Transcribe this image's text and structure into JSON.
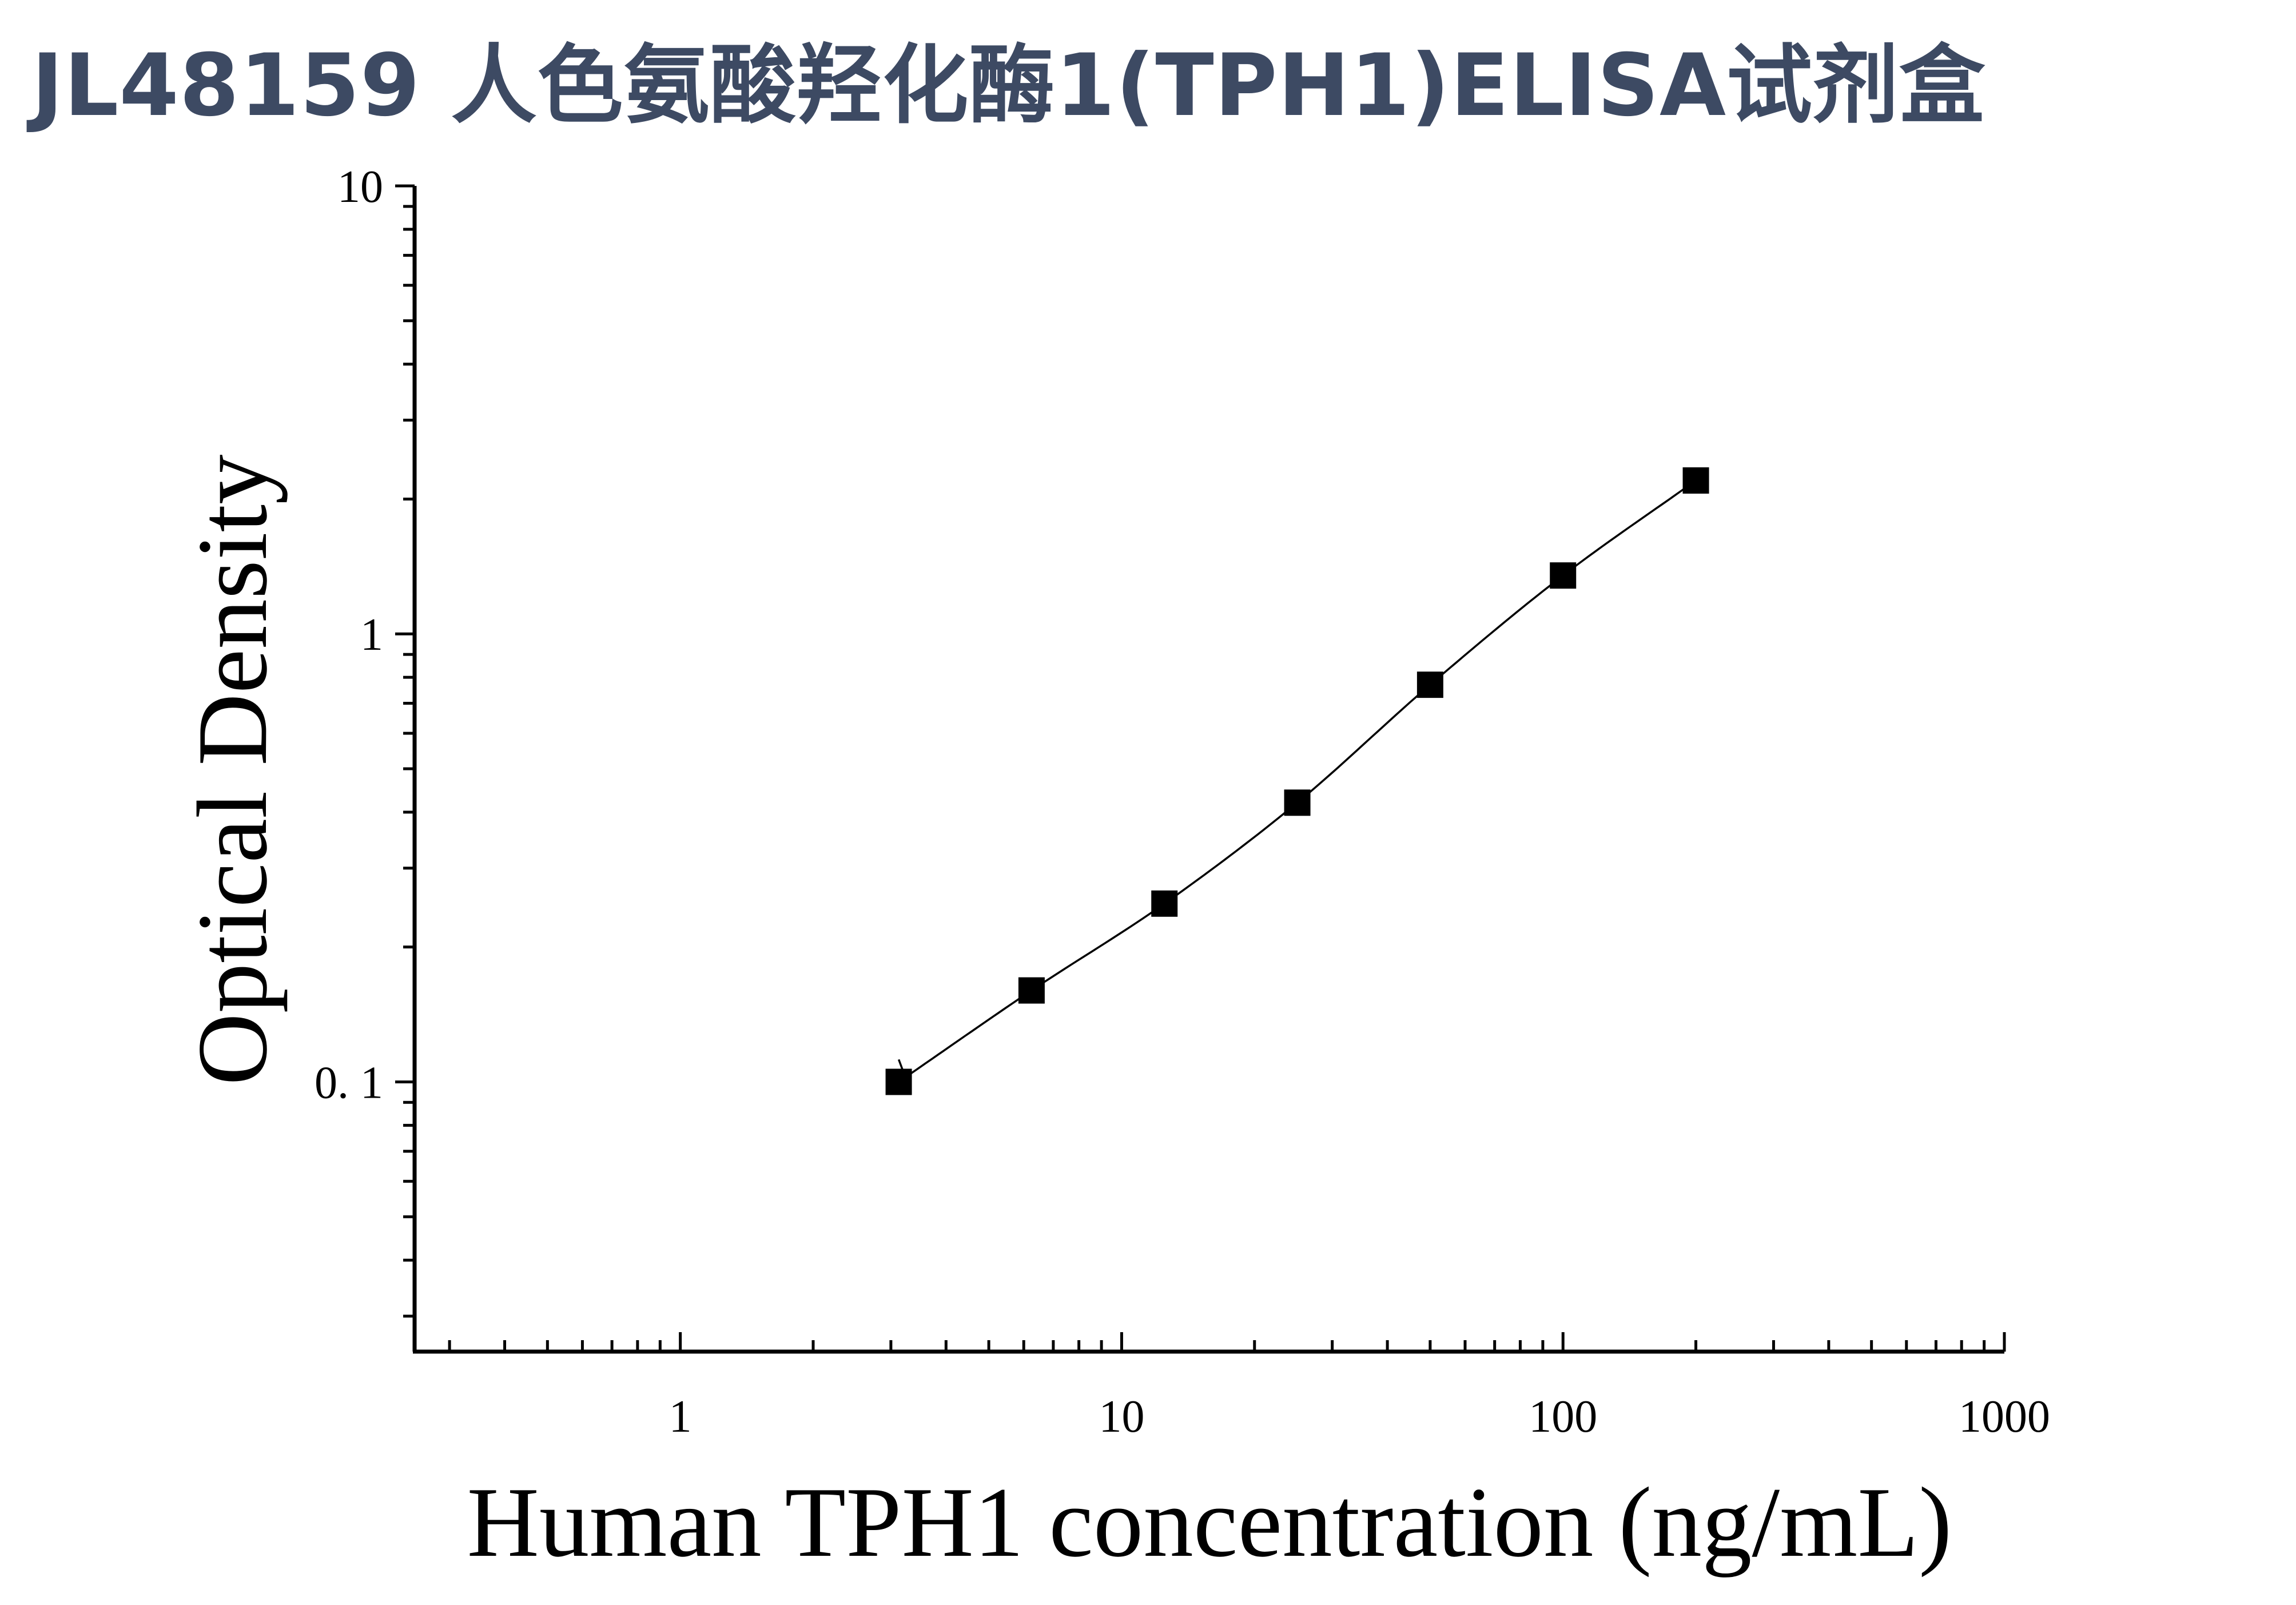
{
  "chart_data": {
    "type": "scatter",
    "title": "JL48159 人色氨酸羟化酶1(TPH1)ELISA试剂盒",
    "xlabel": "Human TPH1 concentration (ng/mL)",
    "ylabel": "Optical Density",
    "x_scale": "log",
    "y_scale": "log",
    "xlim": [
      0.25,
      1000
    ],
    "ylim": [
      0.025,
      10
    ],
    "x_tick_labels": [
      "1",
      "10",
      "100",
      "1000"
    ],
    "y_tick_labels": [
      "10",
      "1",
      "0. 1"
    ],
    "grid": false,
    "series": [
      {
        "marker": "square",
        "color": "#000000",
        "x": [
          3.125,
          6.25,
          12.5,
          25,
          50,
          100,
          200
        ],
        "y": [
          0.1,
          0.16,
          0.25,
          0.42,
          0.77,
          1.35,
          2.2
        ],
        "fit_curve": true
      }
    ]
  }
}
